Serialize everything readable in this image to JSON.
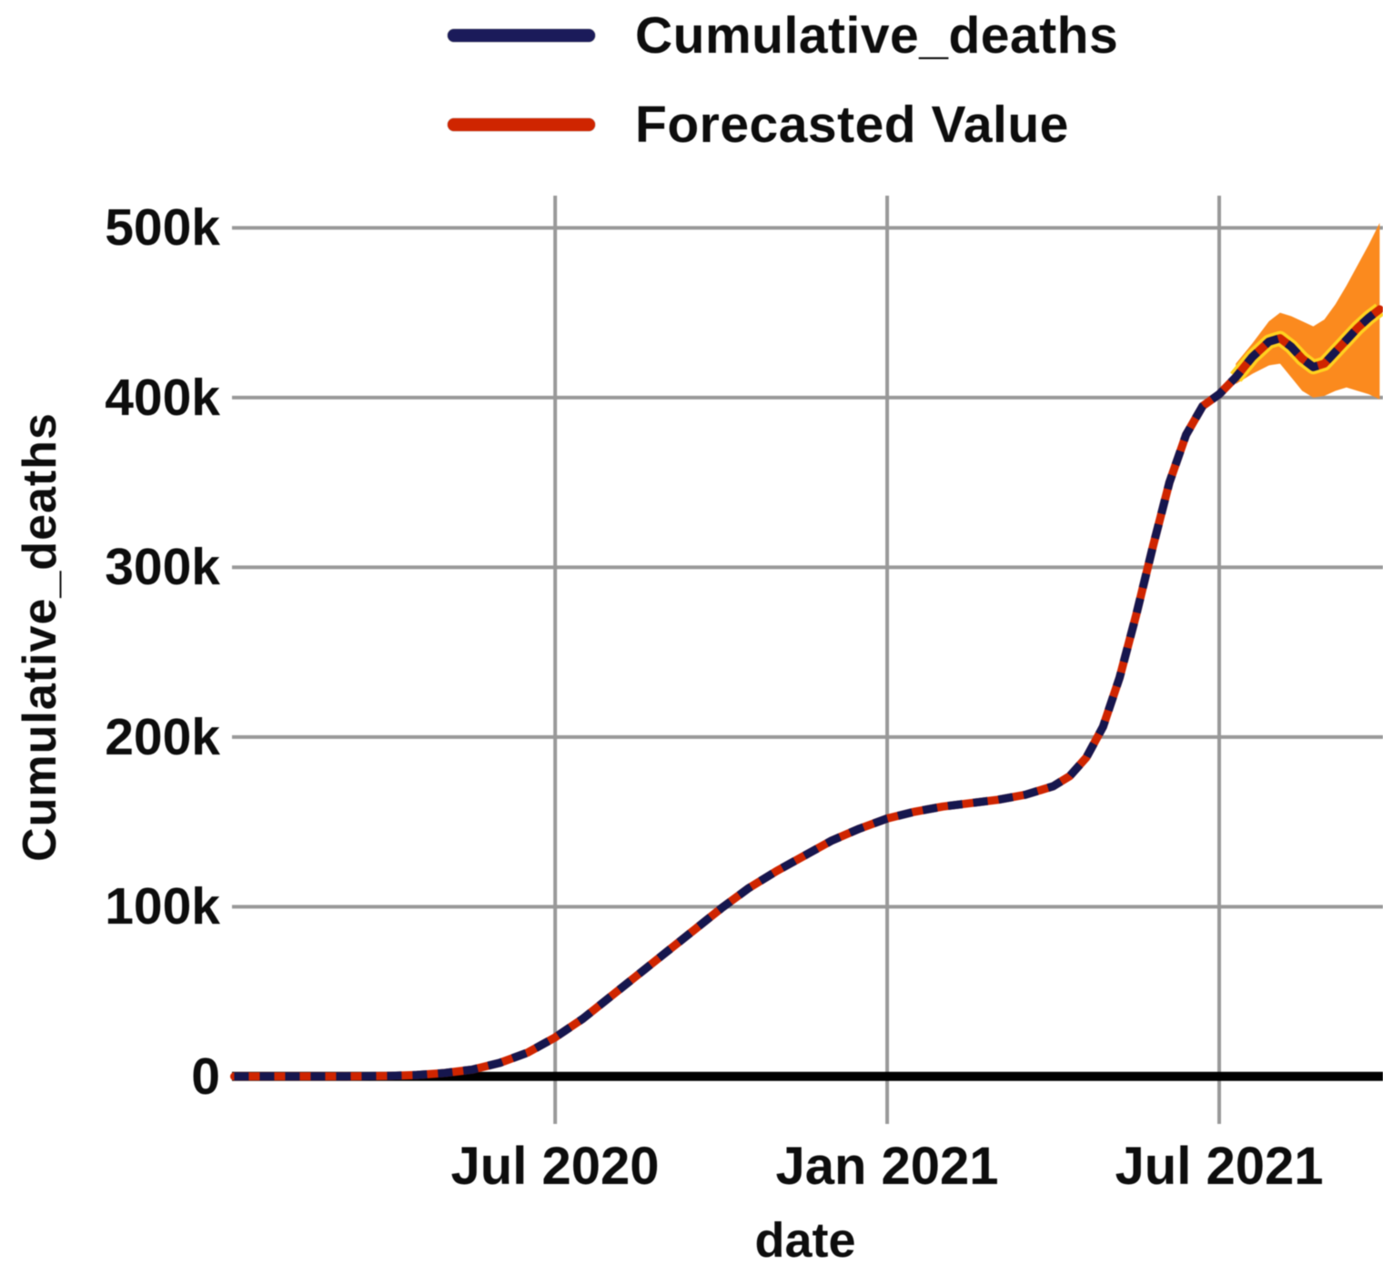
{
  "chart_data": {
    "type": "line",
    "title": "",
    "xlabel": "date",
    "ylabel": "Cumulative_deaths",
    "value_unit": "thousands (k)",
    "x_unit": "months since Jan 2020",
    "legend_position": "top-center",
    "grid_on": true,
    "legend": [
      {
        "label": "Cumulative_deaths",
        "color": "#1b1b5a"
      },
      {
        "label": "Forecasted Value",
        "color": "#cf2500"
      }
    ],
    "colors": {
      "grid": "#999999",
      "zero_line": "#000000",
      "band": "#fb8a1e",
      "band_mid": "#ffd21f",
      "actual": "#16164e",
      "forecast": "#cf2500",
      "text": "#0d0d0d"
    },
    "xlim": [
      0.16,
      20.96
    ],
    "ylim": [
      -28,
      519
    ],
    "xticks": {
      "months": [
        6,
        12,
        18
      ],
      "labels": [
        "Jul 2020",
        "Jan 2021",
        "Jul 2021"
      ]
    },
    "yticks": {
      "values": [
        0,
        100,
        200,
        300,
        400,
        500
      ],
      "labels": [
        "0",
        "100k",
        "200k",
        "300k",
        "400k",
        "500k"
      ]
    },
    "grid": {
      "x_months": [
        6,
        12,
        18
      ],
      "y_values": [
        100,
        200,
        300,
        400,
        500
      ]
    },
    "x": [
      0.2,
      1,
      2,
      2.5,
      3,
      3.5,
      4,
      4.5,
      5,
      5.5,
      6,
      6.5,
      7,
      7.5,
      8,
      8.5,
      9,
      9.5,
      10,
      10.5,
      11,
      11.5,
      12,
      12.5,
      13,
      13.5,
      14,
      14.5,
      15,
      15.3,
      15.6,
      15.9,
      16.2,
      16.5,
      16.8,
      17.1,
      17.4,
      17.7,
      18,
      18.3,
      18.6,
      18.9,
      19.1,
      19.3,
      19.5,
      19.7,
      19.9,
      20.1,
      20.3,
      20.5,
      20.7,
      20.9
    ],
    "series": [
      {
        "name": "Cumulative_deaths",
        "style": "dashed",
        "values": [
          0,
          0,
          0,
          0.1,
          0.3,
          0.8,
          2,
          4,
          8,
          14,
          23,
          34,
          47,
          60,
          73,
          86,
          99,
          111,
          121,
          130,
          139,
          146,
          152,
          156,
          159,
          161,
          163,
          166,
          171,
          177,
          188,
          206,
          235,
          272,
          312,
          350,
          378,
          395,
          402,
          412,
          424,
          433,
          435,
          430,
          423,
          418,
          420,
          427,
          434,
          441,
          447,
          452
        ]
      },
      {
        "name": "Forecasted Value",
        "style": "solid",
        "values": [
          0,
          0,
          0,
          0.1,
          0.3,
          0.8,
          2,
          4,
          8,
          14,
          23,
          34,
          47,
          60,
          73,
          86,
          99,
          111,
          121,
          130,
          139,
          146,
          152,
          156,
          159,
          161,
          163,
          166,
          171,
          177,
          188,
          206,
          235,
          272,
          312,
          350,
          378,
          395,
          402,
          412,
          424,
          433,
          435,
          430,
          423,
          418,
          420,
          427,
          434,
          441,
          447,
          452
        ]
      }
    ],
    "band": {
      "label": "forecast confidence interval",
      "x": [
        18.3,
        18.6,
        18.9,
        19.1,
        19.3,
        19.5,
        19.7,
        19.9,
        20.1,
        20.3,
        20.5,
        20.7,
        20.9
      ],
      "lower": [
        408,
        414,
        419,
        420,
        412,
        404,
        400,
        401,
        404,
        406,
        404,
        402,
        399
      ],
      "mid": [
        412,
        424,
        433,
        435,
        430,
        423,
        418,
        420,
        427,
        434,
        441,
        447,
        452
      ],
      "upper": [
        420,
        432,
        445,
        450,
        448,
        445,
        442,
        446,
        455,
        466,
        478,
        490,
        503
      ]
    }
  }
}
